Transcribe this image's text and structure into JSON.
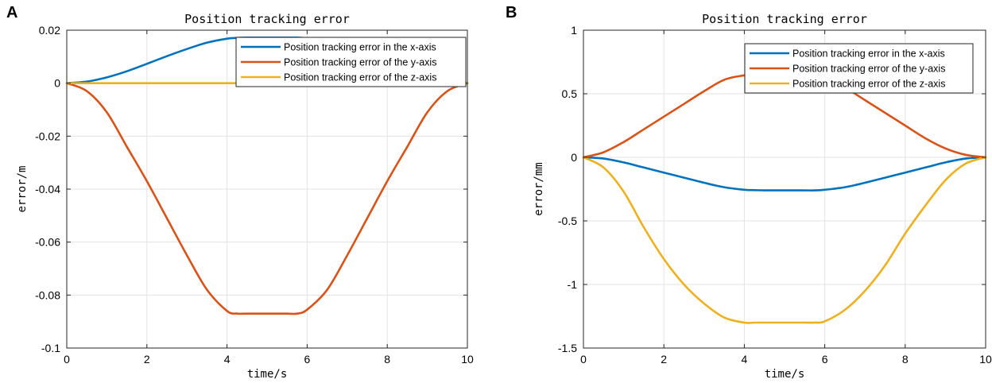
{
  "chart_data": [
    {
      "panel": "A",
      "type": "line",
      "title": "Position tracking error",
      "xlabel": "time/s",
      "ylabel": "error/m",
      "xlim": [
        0,
        10
      ],
      "ylim": [
        -0.1,
        0.02
      ],
      "xticks": [
        0,
        2,
        4,
        6,
        8,
        10
      ],
      "xtick_labels": [
        "0",
        "2",
        "4",
        "6",
        "8",
        "10"
      ],
      "yticks": [
        -0.1,
        -0.08,
        -0.06,
        -0.04,
        -0.02,
        0,
        0.02
      ],
      "ytick_labels": [
        "-0.1",
        "-0.08",
        "-0.06",
        "-0.04",
        "-0.02",
        "0",
        "0.02"
      ],
      "grid": true,
      "legend_position": "top-right",
      "x": [
        0,
        0.5,
        1,
        1.5,
        2,
        2.5,
        3,
        3.5,
        4,
        4.25,
        4.5,
        5,
        5.5,
        5.75,
        6,
        6.5,
        7,
        7.5,
        8,
        8.5,
        9,
        9.5,
        10
      ],
      "series": [
        {
          "name": "Position tracking error in the x-axis",
          "color": "#0072BD",
          "values": [
            0,
            0.0006,
            0.0022,
            0.0045,
            0.0073,
            0.0102,
            0.0129,
            0.0153,
            0.0168,
            0.0171,
            0.0172,
            0.0172,
            0.0172,
            0.0172,
            0.0169,
            0.0154,
            0.013,
            0.0101,
            0.0073,
            0.0045,
            0.0022,
            0.0006,
            0
          ]
        },
        {
          "name": "Position tracking error of the y-axis",
          "color": "#D95319",
          "values": [
            0,
            -0.003,
            -0.011,
            -0.024,
            -0.037,
            -0.051,
            -0.065,
            -0.078,
            -0.086,
            -0.087,
            -0.087,
            -0.087,
            -0.087,
            -0.087,
            -0.0855,
            -0.078,
            -0.065,
            -0.051,
            -0.037,
            -0.024,
            -0.011,
            -0.003,
            0
          ]
        },
        {
          "name": "Position tracking error of the z-axis",
          "color": "#EDB120",
          "values": [
            0,
            0,
            0,
            0,
            0,
            0,
            0,
            0,
            0,
            0,
            0,
            0,
            0,
            0,
            0,
            0,
            0,
            0,
            0,
            0,
            0,
            0,
            0
          ]
        }
      ]
    },
    {
      "panel": "B",
      "type": "line",
      "title": "Position tracking error",
      "xlabel": "time/s",
      "ylabel": "error/mm",
      "xlim": [
        0,
        10
      ],
      "ylim": [
        -1.5,
        1
      ],
      "xticks": [
        0,
        2,
        4,
        6,
        8,
        10
      ],
      "xtick_labels": [
        "0",
        "2",
        "4",
        "6",
        "8",
        "10"
      ],
      "yticks": [
        -1.5,
        -1,
        -0.5,
        0,
        0.5,
        1
      ],
      "ytick_labels": [
        "-1.5",
        "-1",
        "-0.5",
        "0",
        "0.5",
        "1"
      ],
      "grid": true,
      "legend_position": "top-right",
      "x": [
        0,
        0.5,
        1,
        1.5,
        2,
        2.5,
        3,
        3.5,
        4,
        4.25,
        4.5,
        5,
        5.5,
        5.75,
        6,
        6.5,
        7,
        7.5,
        8,
        8.5,
        9,
        9.5,
        10
      ],
      "series": [
        {
          "name": "Position tracking error in the x-axis",
          "color": "#0072BD",
          "values": [
            0,
            -0.01,
            -0.04,
            -0.08,
            -0.12,
            -0.16,
            -0.2,
            -0.235,
            -0.255,
            -0.258,
            -0.26,
            -0.26,
            -0.26,
            -0.26,
            -0.255,
            -0.235,
            -0.2,
            -0.16,
            -0.12,
            -0.08,
            -0.04,
            -0.01,
            0
          ]
        },
        {
          "name": "Position tracking error of the y-axis",
          "color": "#D95319",
          "values": [
            0,
            0.04,
            0.12,
            0.22,
            0.32,
            0.42,
            0.52,
            0.61,
            0.645,
            0.65,
            0.65,
            0.65,
            0.65,
            0.65,
            0.63,
            0.55,
            0.45,
            0.35,
            0.25,
            0.15,
            0.07,
            0.02,
            0
          ]
        },
        {
          "name": "Position tracking error of the z-axis",
          "color": "#EDB120",
          "values": [
            0,
            -0.08,
            -0.27,
            -0.55,
            -0.8,
            -1.0,
            -1.15,
            -1.26,
            -1.3,
            -1.3,
            -1.3,
            -1.3,
            -1.3,
            -1.3,
            -1.29,
            -1.2,
            -1.05,
            -0.85,
            -0.6,
            -0.38,
            -0.18,
            -0.05,
            0
          ]
        }
      ]
    }
  ]
}
